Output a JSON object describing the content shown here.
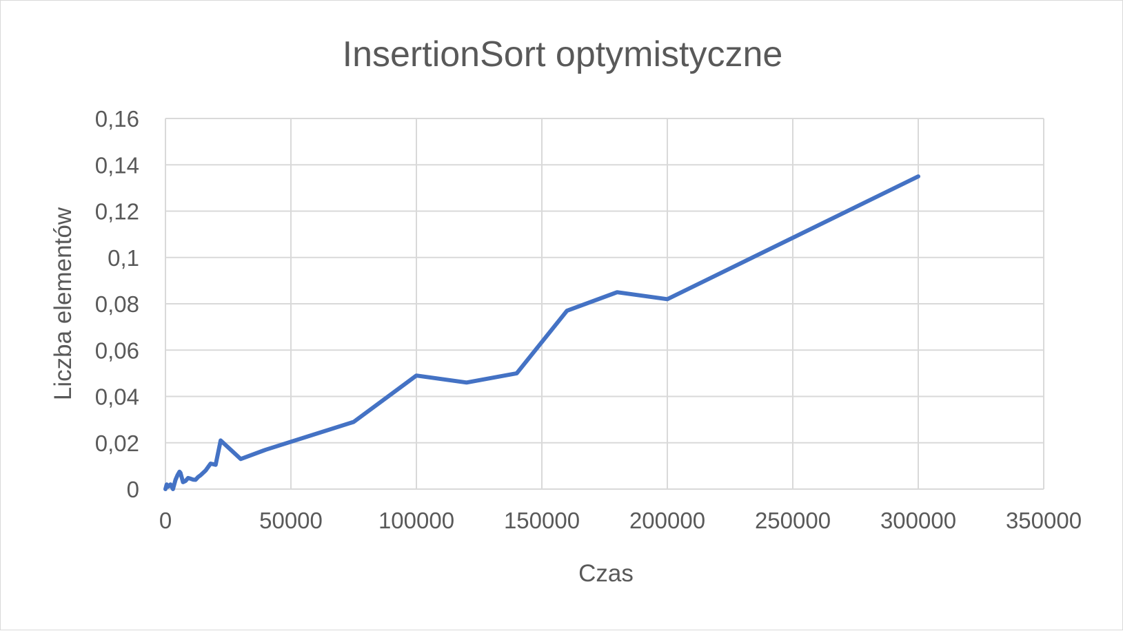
{
  "chart_data": {
    "type": "line",
    "title": "InsertionSort optymistyczne",
    "xlabel": "Czas",
    "ylabel": "Liczba elementów",
    "xlim": [
      0,
      350000
    ],
    "ylim": [
      0,
      0.16
    ],
    "x_ticks": [
      "0",
      "50000",
      "100000",
      "150000",
      "200000",
      "250000",
      "300000",
      "350000"
    ],
    "y_ticks": [
      "0",
      "0,02",
      "0,04",
      "0,06",
      "0,08",
      "0,1",
      "0,12",
      "0,14",
      "0,16"
    ],
    "grid": true,
    "legend": "none",
    "series": [
      {
        "color": "#4472c4",
        "points": [
          [
            0,
            0
          ],
          [
            500,
            0.002
          ],
          [
            1000,
            0.001
          ],
          [
            2000,
            0.002
          ],
          [
            3000,
            0.0
          ],
          [
            4000,
            0.004
          ],
          [
            4800,
            0.006
          ],
          [
            5600,
            0.0075
          ],
          [
            6000,
            0.007
          ],
          [
            7000,
            0.003
          ],
          [
            8000,
            0.0035
          ],
          [
            9000,
            0.0048
          ],
          [
            10000,
            0.0045
          ],
          [
            11000,
            0.0041
          ],
          [
            12000,
            0.004
          ],
          [
            13000,
            0.0052
          ],
          [
            14000,
            0.006
          ],
          [
            16000,
            0.008
          ],
          [
            18000,
            0.011
          ],
          [
            20000,
            0.0105
          ],
          [
            22000,
            0.021
          ],
          [
            30000,
            0.013
          ],
          [
            40000,
            0.017
          ],
          [
            75000,
            0.029
          ],
          [
            100000,
            0.049
          ],
          [
            120000,
            0.046
          ],
          [
            140000,
            0.05
          ],
          [
            160000,
            0.077
          ],
          [
            180000,
            0.085
          ],
          [
            200000,
            0.082
          ],
          [
            300000,
            0.135
          ]
        ]
      }
    ]
  }
}
